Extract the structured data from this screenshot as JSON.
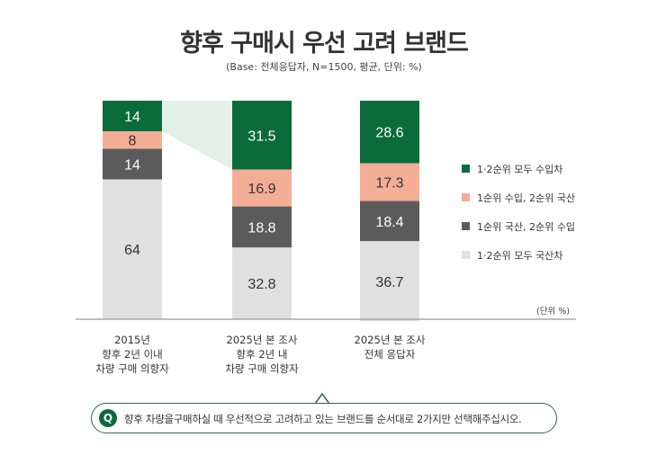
{
  "title": "향후 구매시 우선 고려 브랜드",
  "subtitle": "(Base: 전체응답자, N=1500, 평균, 단위: %)",
  "unit_label": "(단위 %)",
  "question": {
    "badge": "Q",
    "text": "향후 차량을구매하실 때 우선적으로 고려하고 있는 브랜드를 순서대로 2가지만 선택해주십시오."
  },
  "chart_data": {
    "type": "bar",
    "stacked": true,
    "categories": [
      [
        "2015년",
        "향후 2년 이내",
        "차량 구매 의향자"
      ],
      [
        "2025년 본 조사",
        "향후 2년 내",
        "차량 구매 의향자"
      ],
      [
        "2025년 본 조사",
        "전체 응답자"
      ]
    ],
    "series": [
      {
        "name": "1·2순위 모두 수입차",
        "color": "#0b6b3a",
        "values": [
          14,
          31.5,
          28.6
        ]
      },
      {
        "name": "1순위 수입, 2순위 국산",
        "color": "#f4ae96",
        "values": [
          8,
          16.9,
          17.3
        ]
      },
      {
        "name": "1순위 국산, 2순위 수입",
        "color": "#5b5b5b",
        "values": [
          14,
          18.8,
          18.4
        ]
      },
      {
        "name": "1·2순위 모두 국산차",
        "color": "#e0e0e0",
        "values": [
          64,
          32.8,
          36.7
        ]
      }
    ],
    "value_labels": [
      [
        "14",
        "8",
        "14",
        "64"
      ],
      [
        "31.5",
        "16.9",
        "18.8",
        "32.8"
      ],
      [
        "28.6",
        "17.3",
        "18.4",
        "36.7"
      ]
    ],
    "legend": "right",
    "highlight": "connector between imported-car segments of first two bars",
    "highlight_color": "#e2f0e5"
  }
}
